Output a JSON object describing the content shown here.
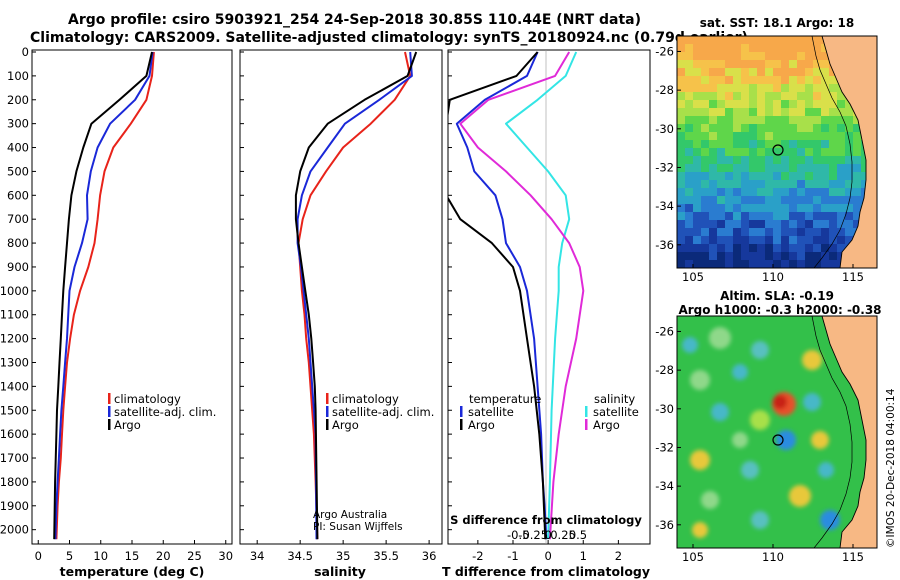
{
  "title": {
    "line1": "Argo profile: csiro 5903921_254 24-Sep-2018 30.85S 110.44E (NRT data)",
    "line2": "Climatology: CARS2009. Satellite-adjusted climatology: synTS_20180924.nc (0.79d earlier)"
  },
  "colors": {
    "climatology": "#e8231a",
    "satellite": "#1a28d8",
    "argo": "#000000",
    "satellite_salinity": "#33e5e5",
    "argo_salinity": "#e02ad8",
    "land": "#f7b884"
  },
  "chart_data": [
    {
      "type": "line",
      "panel": "temperature",
      "xlabel": "temperature (deg C)",
      "xlim": [
        -1,
        31
      ],
      "xticks": [
        "0",
        "5",
        "10",
        "15",
        "20",
        "25",
        "30"
      ],
      "ylim": [
        0,
        2060
      ],
      "yticks": [
        "0",
        "100",
        "200",
        "300",
        "400",
        "500",
        "600",
        "700",
        "800",
        "900",
        "1000",
        "1100",
        "1200",
        "1300",
        "1400",
        "1500",
        "1600",
        "1700",
        "1800",
        "1900",
        "2000"
      ],
      "legend": [
        "climatology",
        "satellite-adj. clim.",
        "Argo"
      ],
      "series": [
        {
          "name": "climatology",
          "color": "#e8231a",
          "x": [
            18.5,
            18.2,
            17.3,
            14.8,
            12.0,
            10.6,
            9.9,
            9.5,
            9.0,
            8.0,
            6.7,
            5.7,
            5.1,
            4.6,
            4.3,
            4.0,
            3.8,
            3.6,
            3.3,
            3.1,
            2.9
          ],
          "y": [
            0,
            100,
            200,
            300,
            400,
            500,
            600,
            700,
            800,
            900,
            1000,
            1100,
            1200,
            1300,
            1400,
            1500,
            1600,
            1700,
            1800,
            1900,
            2040
          ]
        },
        {
          "name": "satellite-adj. clim.",
          "color": "#1a28d8",
          "x": [
            18.3,
            17.8,
            15.5,
            11.5,
            9.5,
            8.4,
            7.8,
            7.9,
            7.0,
            5.8,
            5.0,
            4.6,
            4.3,
            4.0,
            3.7,
            3.5,
            3.3,
            3.1,
            2.9,
            2.75
          ],
          "y": [
            0,
            100,
            200,
            300,
            400,
            500,
            600,
            700,
            800,
            900,
            1000,
            1200,
            1300,
            1400,
            1500,
            1600,
            1700,
            1800,
            1900,
            2040
          ]
        },
        {
          "name": "Argo",
          "color": "#000000",
          "x": [
            18.2,
            17.3,
            13.0,
            8.5,
            7.2,
            6.1,
            5.3,
            4.9,
            4.6,
            4.3,
            4.0,
            3.8,
            3.6,
            3.4,
            3.2,
            3.0,
            2.9,
            2.7,
            2.55
          ],
          "y": [
            0,
            100,
            200,
            300,
            400,
            500,
            600,
            700,
            800,
            900,
            1000,
            1100,
            1200,
            1300,
            1400,
            1500,
            1600,
            1800,
            2040
          ]
        }
      ]
    },
    {
      "type": "line",
      "panel": "salinity",
      "xlabel": "salinity",
      "xlim": [
        33.8,
        36.15
      ],
      "xticks": [
        "34",
        "34.5",
        "35",
        "35.5",
        "36"
      ],
      "ylim": [
        0,
        2060
      ],
      "legend": [
        "climatology",
        "satellite-adj. clim.",
        "Argo"
      ],
      "annotation": [
        "Argo Australia",
        "PI: Susan Wijffels"
      ],
      "series": [
        {
          "name": "climatology",
          "color": "#e8231a",
          "x": [
            35.72,
            35.78,
            35.6,
            35.32,
            35.0,
            34.8,
            34.62,
            34.53,
            34.48,
            34.5,
            34.52,
            34.55,
            34.57,
            34.6,
            34.62,
            34.64,
            34.66,
            34.68,
            34.7
          ],
          "y": [
            0,
            100,
            200,
            300,
            400,
            500,
            600,
            700,
            800,
            900,
            1000,
            1100,
            1200,
            1300,
            1400,
            1500,
            1600,
            1800,
            2040
          ]
        },
        {
          "name": "satellite-adj. clim.",
          "color": "#1a28d8",
          "x": [
            35.78,
            35.8,
            35.42,
            35.02,
            34.82,
            34.62,
            34.52,
            34.47,
            34.47,
            34.51,
            34.54,
            34.57,
            34.6,
            34.62,
            34.64,
            34.66,
            34.68,
            34.69
          ],
          "y": [
            0,
            100,
            200,
            300,
            400,
            500,
            600,
            700,
            800,
            900,
            1000,
            1100,
            1200,
            1300,
            1400,
            1500,
            1600,
            2040
          ]
        },
        {
          "name": "Argo",
          "color": "#000000",
          "x": [
            35.85,
            35.75,
            35.25,
            34.82,
            34.6,
            34.5,
            34.45,
            34.45,
            34.48,
            34.52,
            34.56,
            34.6,
            34.63,
            34.65,
            34.67,
            34.68,
            34.7
          ],
          "y": [
            0,
            100,
            200,
            300,
            400,
            500,
            600,
            700,
            800,
            900,
            1000,
            1100,
            1200,
            1300,
            1400,
            1500,
            2040
          ]
        }
      ]
    },
    {
      "type": "line",
      "panel": "difference",
      "xlabel": "T difference from climatology",
      "xlim": [
        -2.85,
        2.9
      ],
      "xticks": [
        "-2",
        "-1",
        "0",
        "1",
        "2"
      ],
      "top_label": "S difference from climatology",
      "top_ticks": [
        "-0.5",
        "-0.25",
        "0",
        "0.25",
        "0.5"
      ],
      "ylim": [
        0,
        2060
      ],
      "legend_temperature_heading": "temperature",
      "legend_salinity_heading": "salinity",
      "legend_temperature": [
        "satellite",
        "Argo"
      ],
      "legend_salinity": [
        "satellite",
        "Argo"
      ],
      "series": [
        {
          "name": "satellite",
          "color": "#1a28d8",
          "x": [
            -0.3,
            -0.6,
            -1.8,
            -2.6,
            -2.3,
            -2.1,
            -1.5,
            -1.3,
            -1.2,
            -0.8,
            -0.6,
            -0.4,
            -0.3,
            -0.2,
            -0.15,
            -0.1,
            -0.05
          ],
          "y": [
            0,
            100,
            200,
            300,
            400,
            500,
            600,
            700,
            800,
            900,
            1000,
            1200,
            1400,
            1600,
            1800,
            1900,
            2040
          ]
        },
        {
          "name": "Argo",
          "color": "#000000",
          "x": [
            -0.3,
            -0.9,
            -2.8,
            -2.9,
            -2.9,
            -2.9,
            -2.9,
            -2.5,
            -1.6,
            -1.0,
            -0.8,
            -0.6,
            -0.4,
            -0.25,
            -0.15,
            -0.08
          ],
          "y": [
            0,
            100,
            200,
            300,
            400,
            500,
            600,
            700,
            800,
            900,
            1000,
            1200,
            1400,
            1600,
            1800,
            2040
          ]
        },
        {
          "name": "satellite",
          "color": "#33e5e5",
          "x": [
            0.8,
            0.5,
            -0.3,
            -1.2,
            -0.6,
            0.0,
            0.5,
            0.6,
            0.4,
            0.3,
            0.3,
            0.2,
            0.1,
            0.05,
            0.0
          ],
          "y": [
            0,
            100,
            200,
            300,
            400,
            500,
            600,
            700,
            800,
            900,
            1000,
            1200,
            1500,
            1800,
            2040
          ]
        },
        {
          "name": "Argo",
          "color": "#e02ad8",
          "x": [
            0.6,
            0.2,
            -1.7,
            -2.5,
            -2.0,
            -1.2,
            -0.5,
            0.1,
            0.6,
            0.9,
            1.0,
            0.8,
            0.5,
            0.3,
            0.15,
            0.05
          ],
          "y": [
            0,
            100,
            200,
            300,
            400,
            500,
            600,
            700,
            800,
            900,
            1000,
            1200,
            1400,
            1600,
            1800,
            2040
          ]
        }
      ]
    },
    {
      "type": "heatmap",
      "panel": "sst_map",
      "title": "sat. SST: 18.1  Argo: 18",
      "xticks": [
        "105",
        "110",
        "115"
      ],
      "yticks": [
        "-26",
        "-28",
        "-30",
        "-32",
        "-34",
        "-36"
      ],
      "xlim": [
        104.0,
        116.5
      ],
      "ylim": [
        -37.2,
        -25.2
      ],
      "argo_position": [
        110.44,
        -30.85
      ]
    },
    {
      "type": "heatmap",
      "panel": "sla_map",
      "title": "Altim. SLA: -0.19",
      "subtitle": "Argo h1000: -0.3 h2000: -0.38",
      "xticks": [
        "105",
        "110",
        "115"
      ],
      "yticks": [
        "-26",
        "-28",
        "-30",
        "-32",
        "-34",
        "-36"
      ],
      "xlim": [
        104.0,
        116.5
      ],
      "ylim": [
        -37.2,
        -25.2
      ],
      "argo_position": [
        110.44,
        -30.85
      ]
    }
  ],
  "footer": "©IMOS 20-Dec-2018 04:00:14"
}
